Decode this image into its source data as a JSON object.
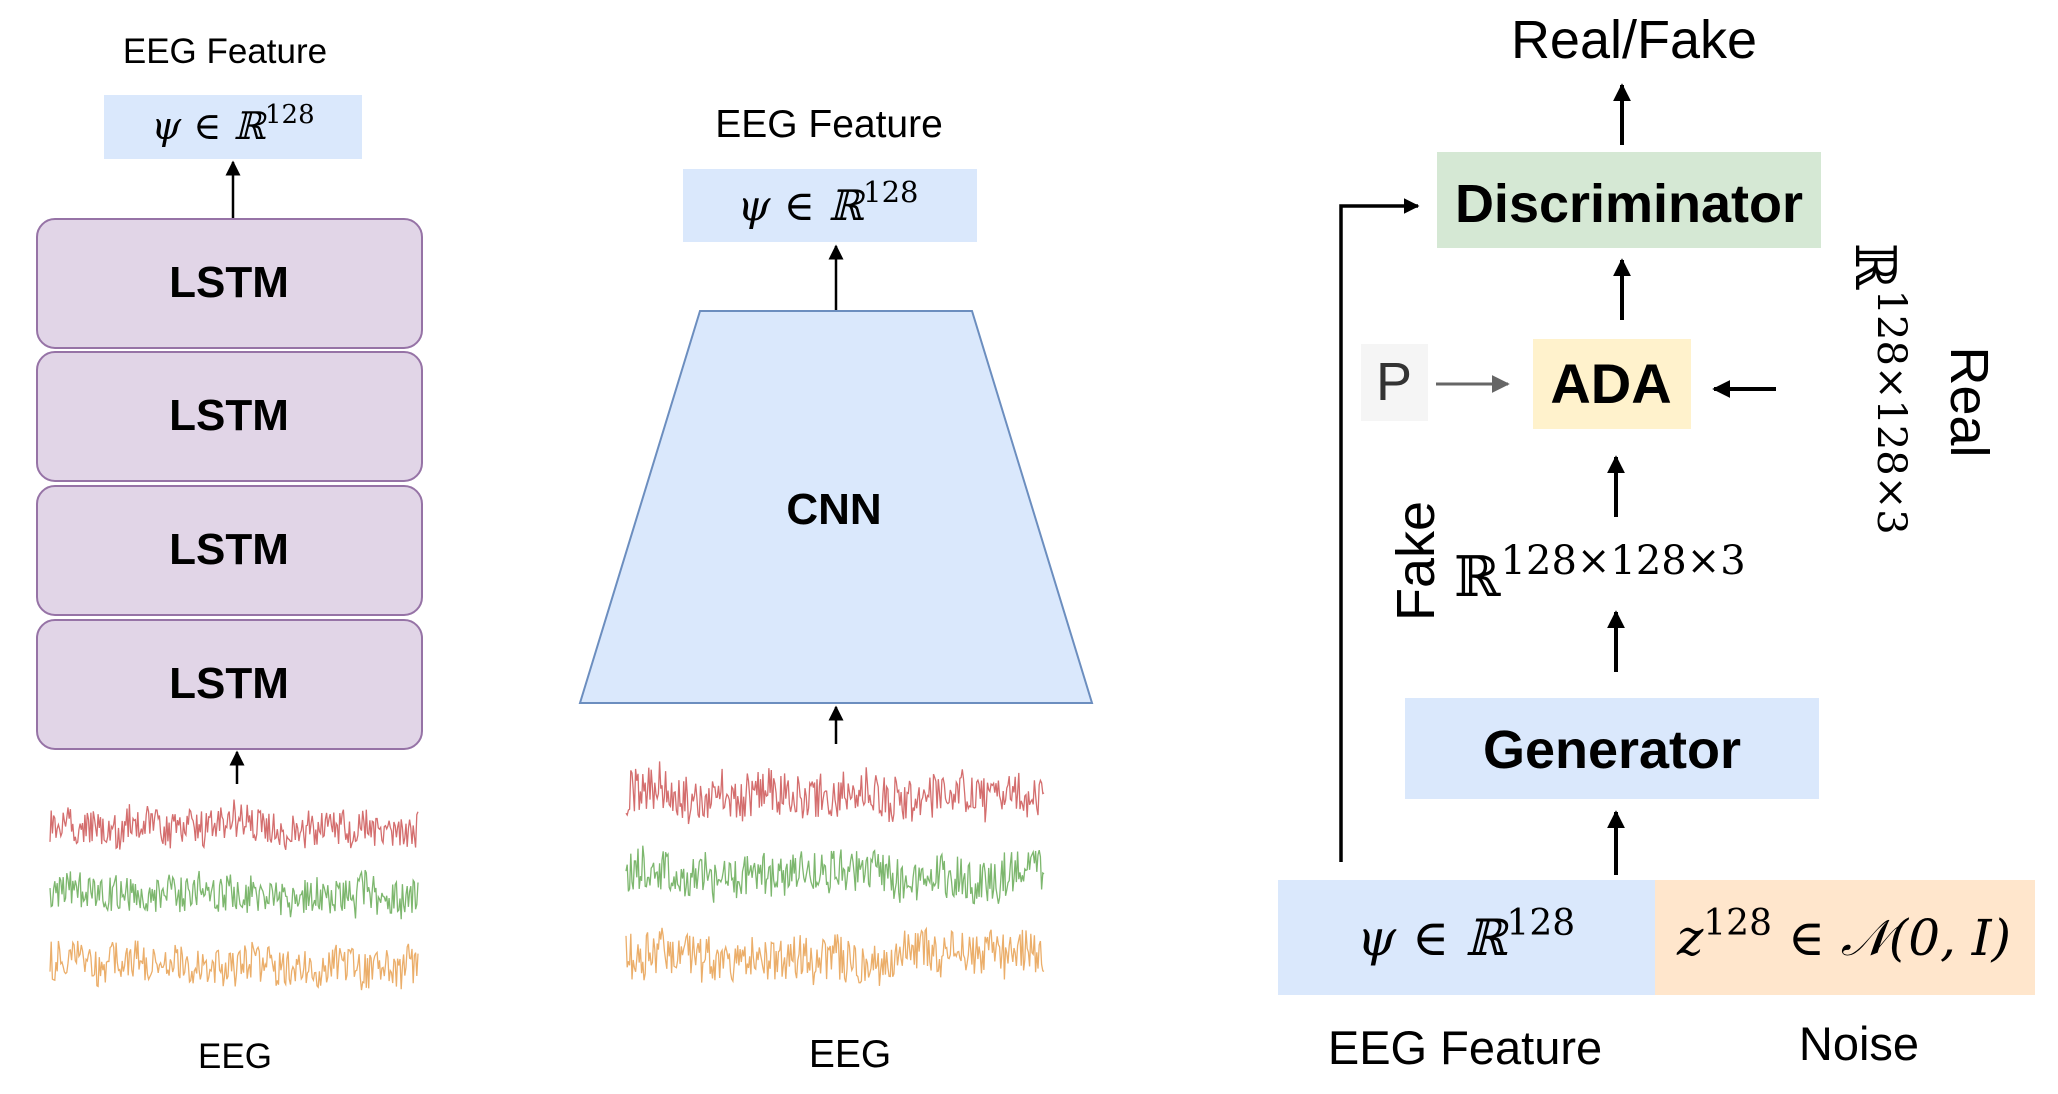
{
  "lstm_panel": {
    "top_label": "EEG Feature",
    "feature_math": {
      "symbol": "ψ ∈ ℝ",
      "power": "128"
    },
    "layers": [
      "LSTM",
      "LSTM",
      "LSTM",
      "LSTM"
    ],
    "bottom_label": "EEG"
  },
  "cnn_panel": {
    "top_label": "EEG Feature",
    "feature_math": {
      "symbol": "ψ ∈ ℝ",
      "power": "128"
    },
    "block_label": "CNN",
    "bottom_label": "EEG"
  },
  "gan_panel": {
    "top_label": "Real/Fake",
    "discriminator_label": "Discriminator",
    "ada_label": "ADA",
    "p_label": "P",
    "real_label": "Real",
    "real_dims": {
      "symbol": "ℝ",
      "power": "128×128×3"
    },
    "fake_label": "Fake",
    "fake_dims": {
      "symbol": "ℝ",
      "power": "128×128×3"
    },
    "generator_label": "Generator",
    "feature_math": {
      "symbol": "ψ ∈ ℝ",
      "power": "128"
    },
    "noise_math": {
      "var": "z",
      "power": "128",
      "rest": " ∈ 𝒩(0, I)"
    },
    "feature_caption": "EEG Feature",
    "noise_caption": "Noise"
  },
  "colors": {
    "feature_box": "#dae8fc",
    "lstm_fill": "#e1d5e7",
    "lstm_stroke": "#9673a6",
    "cnn_fill": "#dae8fc",
    "cnn_stroke": "#6c8ebf",
    "discriminator_fill": "#d5e8d4",
    "ada_fill": "#fff2cc",
    "p_fill": "#f5f5f5",
    "noise_fill": "#ffe6cc",
    "eeg_red": "#cc5555",
    "eeg_green": "#66aa55",
    "eeg_orange": "#e8a050"
  }
}
